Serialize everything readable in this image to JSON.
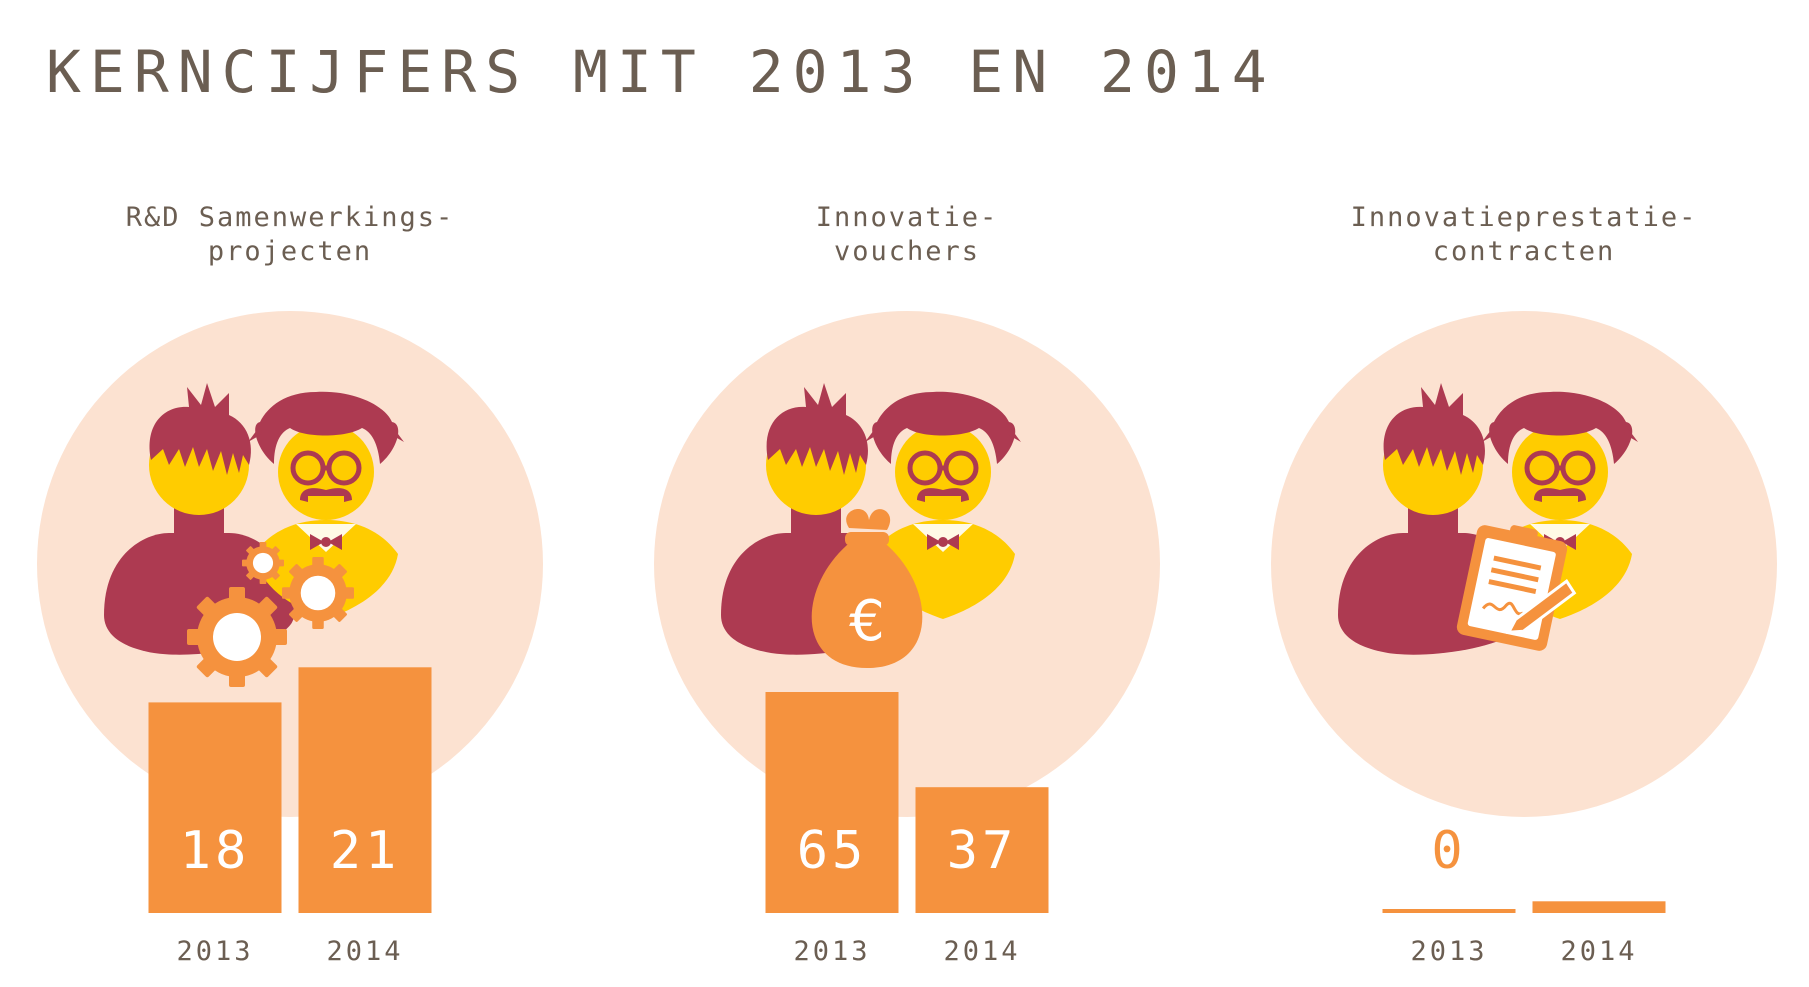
{
  "title": "KERNCIJFERS MIT 2013 EN 2014",
  "colors": {
    "bar": "#f5923e",
    "circle": "#fce2d1",
    "head_yellow": "#ffcc00",
    "maroon": "#ad3a51",
    "text": "#6b5e52"
  },
  "chart_data": [
    {
      "type": "bar",
      "title_lines": [
        "R&D Samenwerkings-",
        "projecten"
      ],
      "categories": [
        "2013",
        "2014"
      ],
      "values": [
        18,
        21
      ],
      "icon": "gears-icon"
    },
    {
      "type": "bar",
      "title_lines": [
        "Innovatie-",
        "vouchers"
      ],
      "categories": [
        "2013",
        "2014"
      ],
      "values": [
        65,
        37
      ],
      "icon": "money-bag-icon"
    },
    {
      "type": "bar",
      "title_lines": [
        "Innovatieprestatie-",
        "contracten"
      ],
      "categories": [
        "2013",
        "2014"
      ],
      "values": [
        0,
        1
      ],
      "icon": "contract-icon"
    }
  ]
}
